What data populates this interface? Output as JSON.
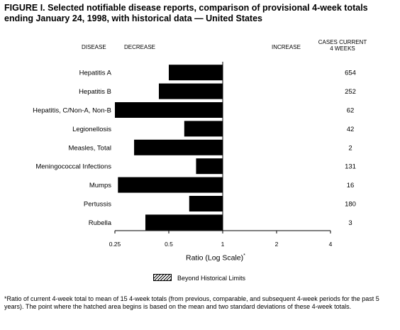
{
  "title": "FIGURE I. Selected notifiable disease reports, comparison of provisional 4-week totals ending January 24, 1998, with historical data — United States",
  "headers": {
    "disease": "DISEASE",
    "decrease": "DECREASE",
    "increase": "INCREASE",
    "cases_line1": "CASES CURRENT",
    "cases_line2": "4 WEEKS"
  },
  "xlabel": "Ratio (Log Scale)",
  "xlabel_mark": "*",
  "legend": {
    "label": "Beyond Historical Limits",
    "swatch": "hatched"
  },
  "footnote": "*Ratio of current 4-week total to mean of 15 4-week totals (from previous, comparable, and subsequent 4-week periods for the past 5 years). The point where the hatched area begins is based on the mean and two standard deviations of these 4-week totals.",
  "chart_data": {
    "type": "bar",
    "orientation": "horizontal",
    "x_scale": "log2",
    "xlim": [
      0.25,
      4
    ],
    "baseline": 1,
    "xticks": [
      0.25,
      0.5,
      1,
      2,
      4
    ],
    "xtick_labels": [
      "0.25",
      "0.5",
      "1",
      "2",
      "4"
    ],
    "categories": [
      "Hepatitis A",
      "Hepatitis B",
      "Hepatitis, C/Non-A, Non-B",
      "Legionellosis",
      "Measles, Total",
      "Meningococcal Infections",
      "Mumps",
      "Pertussis",
      "Rubella"
    ],
    "ratios": [
      0.5,
      0.44,
      0.25,
      0.61,
      0.32,
      0.71,
      0.26,
      0.65,
      0.37
    ],
    "cases_current_4_weeks": [
      "654",
      "252",
      "62",
      "42",
      "2",
      "131",
      "16",
      "180",
      "3"
    ],
    "bar_color": "#000000"
  }
}
